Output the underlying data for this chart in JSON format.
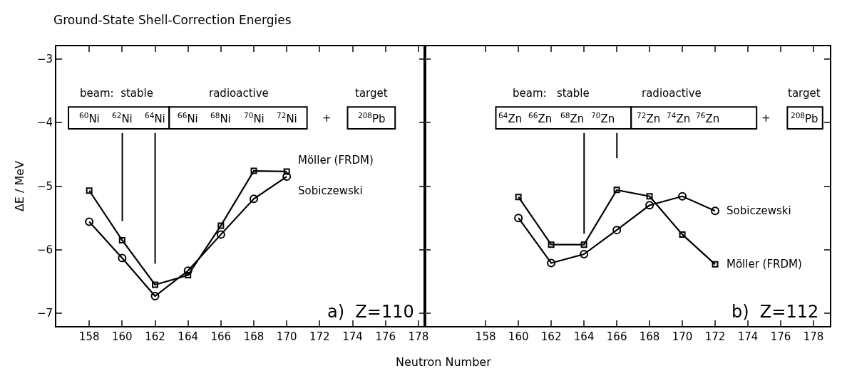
{
  "chart_data": [
    {
      "type": "line",
      "title": "Ground-State Shell-Correction Energies",
      "xlabel": "Neutron Number",
      "ylabel": "ΔE / MeV",
      "x": [
        158,
        160,
        162,
        164,
        166,
        168,
        170
      ],
      "xlim": [
        156,
        178.4
      ],
      "xticks": [
        158,
        160,
        162,
        164,
        166,
        168,
        170,
        172,
        174,
        176,
        178
      ],
      "ylim": [
        -7.2,
        -2.8
      ],
      "yticks": [
        -7,
        -6,
        -5,
        -4,
        -3
      ],
      "legend": false,
      "line_style": "solid",
      "series": [
        {
          "name": "Möller (FRDM)",
          "color": "#000000",
          "marker": "square",
          "values": [
            -5.07,
            -5.85,
            -6.55,
            -6.4,
            -5.62,
            -4.76,
            -4.77
          ]
        },
        {
          "name": "Sobiczewski",
          "color": "#000000",
          "marker": "circle",
          "values": [
            -5.56,
            -6.13,
            -6.73,
            -6.33,
            -5.76,
            -5.2,
            -4.85
          ]
        }
      ],
      "annotations": [
        "beam:  stable",
        "radioactive",
        "target",
        "+",
        "$^{208}$Pb",
        "a)  Z=110",
        "$^{60}$Ni",
        "$^{62}$Ni",
        "$^{64}$Ni",
        "$^{66}$Ni",
        "$^{68}$Ni",
        "$^{70}$Ni",
        "$^{72}$Ni"
      ]
    },
    {
      "type": "line",
      "tick_labels": "x",
      "x": [
        160,
        162,
        164,
        166,
        168,
        170,
        172
      ],
      "xlim": [
        154.3,
        179
      ],
      "xticks": [
        158,
        160,
        162,
        164,
        166,
        168,
        170,
        172,
        174,
        176,
        178
      ],
      "ylim": [
        -7.2,
        -2.8
      ],
      "yticks": [
        -7,
        -6,
        -5,
        -4,
        -3
      ],
      "legend": false,
      "line_style": "solid",
      "series": [
        {
          "name": "Möller (FRDM)",
          "color": "#000000",
          "marker": "square",
          "values": [
            -5.17,
            -5.92,
            -5.92,
            -5.06,
            -5.16,
            -5.76,
            -6.23
          ]
        },
        {
          "name": "Sobiczewski",
          "color": "#000000",
          "marker": "circle",
          "values": [
            -5.5,
            -6.21,
            -6.07,
            -5.69,
            -5.3,
            -5.16,
            -5.39
          ]
        }
      ],
      "annotations": [
        "beam:   stable",
        "radioactive",
        "target",
        "+",
        "$^{208}$Pb",
        "b)  Z=112",
        "$^{64}$Zn",
        "$^{66}$Zn",
        "$^{68}$Zn",
        "$^{70}$Zn",
        "$^{72}$Zn",
        "$^{74}$Zn",
        "$^{76}$Zn"
      ]
    }
  ]
}
